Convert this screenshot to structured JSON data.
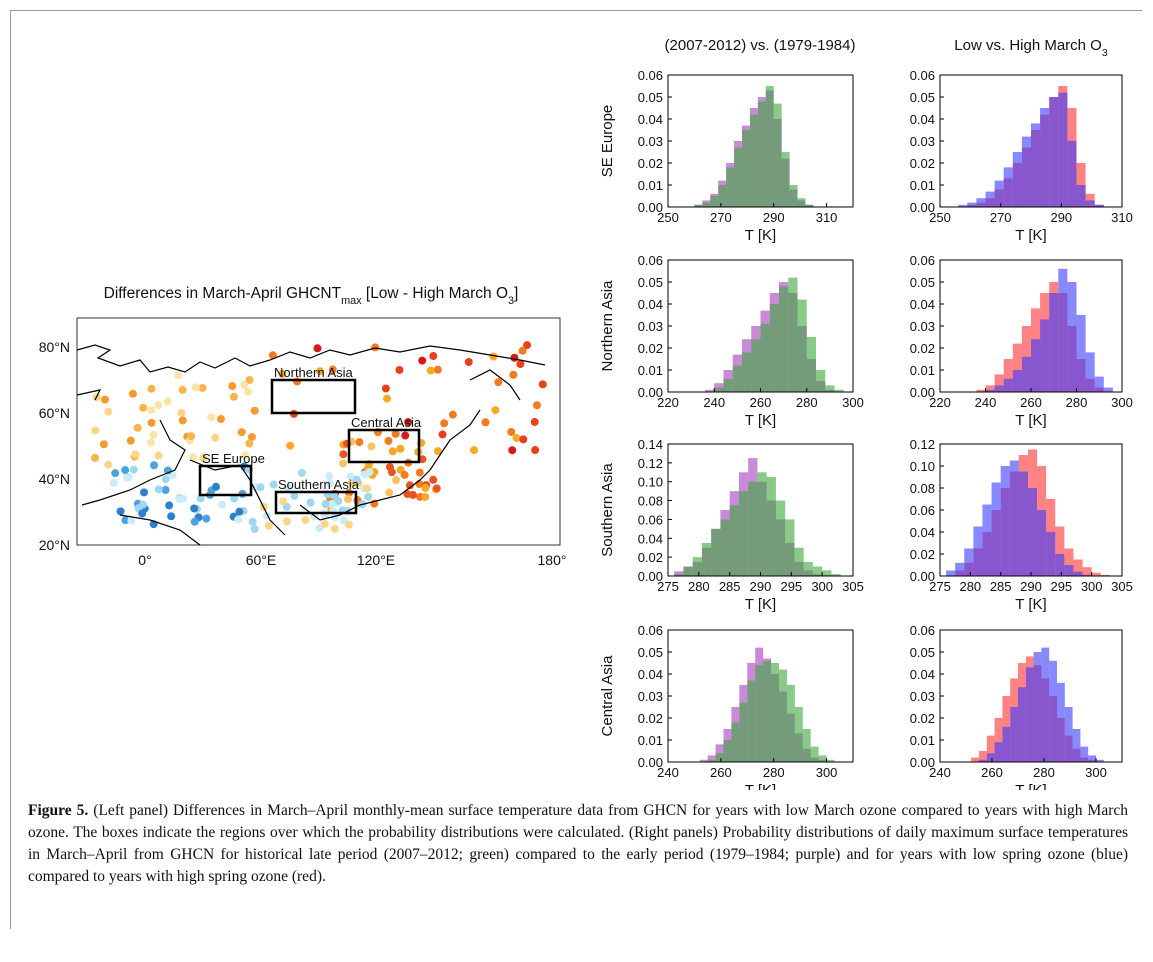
{
  "map": {
    "title_parts": [
      "Differences in March-April GHCNT",
      "max",
      " [Low - High March O",
      "3",
      "]"
    ],
    "lat_labels": [
      "80°N",
      "60°N",
      "40°N",
      "20°N"
    ],
    "lon_labels": [
      "0°",
      "60°E",
      "120°E",
      "180°"
    ],
    "regions": [
      "Northern Asia",
      "Central Asia",
      "SE Europe",
      "Southern Asia"
    ]
  },
  "panel_grid": {
    "column_titles": [
      [
        "(2007-2012) vs. (1979-1984)"
      ],
      [
        "Low vs. High March O",
        "3"
      ]
    ],
    "row_labels": [
      "SE Europe",
      "Northern Asia",
      "Southern Asia",
      "Central Asia"
    ]
  },
  "chart_data": [
    {
      "type": "histogram",
      "x_label": "T [K]",
      "alpha": 0.6,
      "xlim": [
        250,
        320
      ],
      "xticks": [
        250,
        270,
        290,
        310
      ],
      "ylim": [
        0,
        0.06
      ],
      "yticks": [
        {
          "value": 0,
          "label": "0.00"
        },
        {
          "value": 0.01,
          "label": "0.01"
        },
        {
          "value": 0.02,
          "label": "0.02"
        },
        {
          "value": 0.03,
          "label": "0.03"
        },
        {
          "value": 0.04,
          "label": "0.04"
        },
        {
          "value": 0.05,
          "label": "0.05"
        },
        {
          "value": 0.06,
          "label": "0.06"
        }
      ],
      "bins": [
        260,
        263,
        266,
        269,
        272,
        275,
        278,
        281,
        284,
        287,
        290,
        293,
        296,
        299,
        302,
        305
      ],
      "series": [
        {
          "color": "#a83cc0",
          "values": [
            0.001,
            0.003,
            0.006,
            0.012,
            0.02,
            0.03,
            0.037,
            0.045,
            0.05,
            0.053,
            0.04,
            0.022,
            0.008,
            0.003,
            0.001
          ]
        },
        {
          "color": "#3aa63a",
          "values": [
            0.001,
            0.002,
            0.005,
            0.01,
            0.018,
            0.027,
            0.035,
            0.042,
            0.048,
            0.055,
            0.047,
            0.025,
            0.01,
            0.004,
            0.001
          ]
        }
      ]
    },
    {
      "type": "histogram",
      "x_label": "T [K]",
      "alpha": 0.6,
      "xlim": [
        250,
        310
      ],
      "xticks": [
        250,
        270,
        290,
        310
      ],
      "ylim": [
        0,
        0.06
      ],
      "yticks": [
        {
          "value": 0,
          "label": "0.00"
        },
        {
          "value": 0.01,
          "label": "0.01"
        },
        {
          "value": 0.02,
          "label": "0.02"
        },
        {
          "value": 0.03,
          "label": "0.03"
        },
        {
          "value": 0.04,
          "label": "0.04"
        },
        {
          "value": 0.05,
          "label": "0.05"
        },
        {
          "value": 0.06,
          "label": "0.06"
        }
      ],
      "bins": [
        256,
        259,
        262,
        265,
        268,
        271,
        274,
        277,
        280,
        283,
        286,
        289,
        292,
        295,
        298,
        301,
        304
      ],
      "series": [
        {
          "color": "#ff3030",
          "values": [
            0,
            0.001,
            0.002,
            0.004,
            0.008,
            0.013,
            0.02,
            0.027,
            0.035,
            0.042,
            0.05,
            0.055,
            0.045,
            0.02,
            0.006,
            0.001
          ]
        },
        {
          "color": "#3a3aff",
          "values": [
            0.001,
            0.002,
            0.004,
            0.007,
            0.012,
            0.018,
            0.025,
            0.032,
            0.038,
            0.045,
            0.05,
            0.052,
            0.03,
            0.01,
            0.003,
            0.001
          ]
        }
      ]
    },
    {
      "type": "histogram",
      "x_label": "T [K]",
      "alpha": 0.6,
      "xlim": [
        220,
        300
      ],
      "xticks": [
        220,
        240,
        260,
        280,
        300
      ],
      "ylim": [
        0,
        0.06
      ],
      "yticks": [
        {
          "value": 0,
          "label": "0.00"
        },
        {
          "value": 0.01,
          "label": "0.01"
        },
        {
          "value": 0.02,
          "label": "0.02"
        },
        {
          "value": 0.03,
          "label": "0.03"
        },
        {
          "value": 0.04,
          "label": "0.04"
        },
        {
          "value": 0.05,
          "label": "0.05"
        },
        {
          "value": 0.06,
          "label": "0.06"
        }
      ],
      "bins": [
        236,
        240,
        244,
        248,
        252,
        256,
        260,
        264,
        268,
        272,
        276,
        280,
        284,
        288,
        292,
        296
      ],
      "series": [
        {
          "color": "#a83cc0",
          "values": [
            0.001,
            0.004,
            0.01,
            0.017,
            0.024,
            0.03,
            0.037,
            0.045,
            0.05,
            0.045,
            0.03,
            0.015,
            0.005,
            0.001,
            0
          ]
        },
        {
          "color": "#3aa63a",
          "values": [
            0,
            0.002,
            0.006,
            0.012,
            0.018,
            0.024,
            0.031,
            0.04,
            0.048,
            0.052,
            0.042,
            0.025,
            0.01,
            0.003,
            0.001
          ]
        }
      ]
    },
    {
      "type": "histogram",
      "x_label": "T [K]",
      "alpha": 0.6,
      "xlim": [
        220,
        300
      ],
      "xticks": [
        220,
        240,
        260,
        280,
        300
      ],
      "ylim": [
        0,
        0.06
      ],
      "yticks": [
        {
          "value": 0,
          "label": "0.00"
        },
        {
          "value": 0.01,
          "label": "0.01"
        },
        {
          "value": 0.02,
          "label": "0.02"
        },
        {
          "value": 0.03,
          "label": "0.03"
        },
        {
          "value": 0.04,
          "label": "0.04"
        },
        {
          "value": 0.05,
          "label": "0.05"
        },
        {
          "value": 0.06,
          "label": "0.06"
        }
      ],
      "bins": [
        236,
        240,
        244,
        248,
        252,
        256,
        260,
        264,
        268,
        272,
        276,
        280,
        284,
        288,
        292,
        296
      ],
      "series": [
        {
          "color": "#ff3030",
          "values": [
            0.001,
            0.003,
            0.008,
            0.015,
            0.022,
            0.03,
            0.038,
            0.045,
            0.05,
            0.045,
            0.03,
            0.015,
            0.006,
            0.002,
            0
          ]
        },
        {
          "color": "#3a3aff",
          "values": [
            0,
            0.001,
            0.003,
            0.006,
            0.01,
            0.016,
            0.024,
            0.033,
            0.045,
            0.056,
            0.05,
            0.035,
            0.018,
            0.007,
            0.002
          ]
        }
      ]
    },
    {
      "type": "histogram",
      "x_label": "T [K]",
      "alpha": 0.6,
      "xlim": [
        275,
        305
      ],
      "xticks": [
        275,
        280,
        285,
        290,
        295,
        300,
        305
      ],
      "ylim": [
        0,
        0.14
      ],
      "yticks": [
        {
          "value": 0,
          "label": "0.00"
        },
        {
          "value": 0.02,
          "label": "0.02"
        },
        {
          "value": 0.04,
          "label": "0.04"
        },
        {
          "value": 0.06,
          "label": "0.06"
        },
        {
          "value": 0.08,
          "label": "0.08"
        },
        {
          "value": 0.1,
          "label": "0.10"
        },
        {
          "value": 0.12,
          "label": "0.12"
        },
        {
          "value": 0.14,
          "label": "0.14"
        }
      ],
      "bins": [
        276,
        277.5,
        279,
        280.5,
        282,
        283.5,
        285,
        286.5,
        288,
        289.5,
        291,
        292.5,
        294,
        295.5,
        297,
        298.5,
        300,
        301.5,
        303
      ],
      "series": [
        {
          "color": "#a83cc0",
          "values": [
            0.005,
            0.01,
            0.015,
            0.03,
            0.05,
            0.07,
            0.09,
            0.11,
            0.125,
            0.1,
            0.08,
            0.06,
            0.035,
            0.015,
            0.006,
            0.002,
            0.001,
            0
          ]
        },
        {
          "color": "#3aa63a",
          "values": [
            0.002,
            0.01,
            0.02,
            0.035,
            0.05,
            0.06,
            0.075,
            0.09,
            0.1,
            0.11,
            0.105,
            0.08,
            0.06,
            0.03,
            0.015,
            0.01,
            0.006,
            0.002
          ]
        }
      ]
    },
    {
      "type": "histogram",
      "x_label": "T [K]",
      "alpha": 0.6,
      "xlim": [
        275,
        305
      ],
      "xticks": [
        275,
        280,
        285,
        290,
        295,
        300,
        305
      ],
      "ylim": [
        0,
        0.12
      ],
      "yticks": [
        {
          "value": 0,
          "label": "0.00"
        },
        {
          "value": 0.02,
          "label": "0.02"
        },
        {
          "value": 0.04,
          "label": "0.04"
        },
        {
          "value": 0.06,
          "label": "0.06"
        },
        {
          "value": 0.08,
          "label": "0.08"
        },
        {
          "value": 0.1,
          "label": "0.10"
        },
        {
          "value": 0.12,
          "label": "0.12"
        }
      ],
      "bins": [
        276,
        277.5,
        279,
        280.5,
        282,
        283.5,
        285,
        286.5,
        288,
        289.5,
        291,
        292.5,
        294,
        295.5,
        297,
        298.5,
        300,
        301.5,
        303
      ],
      "series": [
        {
          "color": "#ff3030",
          "values": [
            0,
            0.005,
            0.012,
            0.025,
            0.04,
            0.06,
            0.08,
            0.095,
            0.11,
            0.115,
            0.1,
            0.07,
            0.045,
            0.025,
            0.015,
            0.008,
            0.003,
            0.001
          ]
        },
        {
          "color": "#3a3aff",
          "values": [
            0.005,
            0.012,
            0.025,
            0.045,
            0.065,
            0.085,
            0.1,
            0.105,
            0.095,
            0.08,
            0.06,
            0.04,
            0.02,
            0.01,
            0.004,
            0.001,
            0,
            0
          ]
        }
      ]
    },
    {
      "type": "histogram",
      "x_label": "T [K]",
      "alpha": 0.6,
      "xlim": [
        240,
        310
      ],
      "xticks": [
        240,
        260,
        280,
        300
      ],
      "ylim": [
        0,
        0.06
      ],
      "yticks": [
        {
          "value": 0,
          "label": "0.00"
        },
        {
          "value": 0.01,
          "label": "0.01"
        },
        {
          "value": 0.02,
          "label": "0.02"
        },
        {
          "value": 0.03,
          "label": "0.03"
        },
        {
          "value": 0.04,
          "label": "0.04"
        },
        {
          "value": 0.05,
          "label": "0.05"
        },
        {
          "value": 0.06,
          "label": "0.06"
        }
      ],
      "bins": [
        252,
        255,
        258,
        261,
        264,
        267,
        270,
        273,
        276,
        279,
        282,
        285,
        288,
        291,
        294,
        297,
        300,
        303
      ],
      "series": [
        {
          "color": "#a83cc0",
          "values": [
            0.001,
            0.003,
            0.008,
            0.015,
            0.025,
            0.035,
            0.045,
            0.052,
            0.047,
            0.04,
            0.032,
            0.022,
            0.013,
            0.006,
            0.002,
            0.001,
            0
          ]
        },
        {
          "color": "#3aa63a",
          "values": [
            0,
            0.001,
            0.004,
            0.01,
            0.018,
            0.027,
            0.037,
            0.044,
            0.046,
            0.045,
            0.042,
            0.035,
            0.025,
            0.015,
            0.007,
            0.003,
            0.001
          ]
        }
      ]
    },
    {
      "type": "histogram",
      "x_label": "T [K]",
      "alpha": 0.6,
      "xlim": [
        240,
        310
      ],
      "xticks": [
        240,
        260,
        280,
        300
      ],
      "ylim": [
        0,
        0.06
      ],
      "yticks": [
        {
          "value": 0,
          "label": "0.00"
        },
        {
          "value": 0.01,
          "label": "0.01"
        },
        {
          "value": 0.02,
          "label": "0.02"
        },
        {
          "value": 0.03,
          "label": "0.03"
        },
        {
          "value": 0.04,
          "label": "0.04"
        },
        {
          "value": 0.05,
          "label": "0.05"
        },
        {
          "value": 0.06,
          "label": "0.06"
        }
      ],
      "bins": [
        252,
        255,
        258,
        261,
        264,
        267,
        270,
        273,
        276,
        279,
        282,
        285,
        288,
        291,
        294,
        297,
        300,
        303
      ],
      "series": [
        {
          "color": "#ff3030",
          "values": [
            0.002,
            0.005,
            0.012,
            0.02,
            0.03,
            0.038,
            0.045,
            0.048,
            0.044,
            0.038,
            0.03,
            0.02,
            0.012,
            0.006,
            0.002,
            0.001,
            0
          ]
        },
        {
          "color": "#3a3aff",
          "values": [
            0,
            0.001,
            0.004,
            0.009,
            0.016,
            0.025,
            0.034,
            0.043,
            0.05,
            0.052,
            0.046,
            0.036,
            0.025,
            0.015,
            0.007,
            0.003,
            0.001
          ]
        }
      ]
    }
  ],
  "caption": {
    "label": "Figure 5.",
    "text": " (Left panel) Differences in March–April monthly-mean surface temperature data from GHCN for years with low March ozone compared to years with high March ozone. The boxes indicate the regions over which the probability distributions were calculated. (Right panels) Probability distributions of daily maximum surface temperatures in March–April from GHCN for historical late period (2007–2012; green) compared to the early period (1979–1984; purple) and for years with low spring ozone (blue) compared to years with high spring ozone (red)."
  }
}
